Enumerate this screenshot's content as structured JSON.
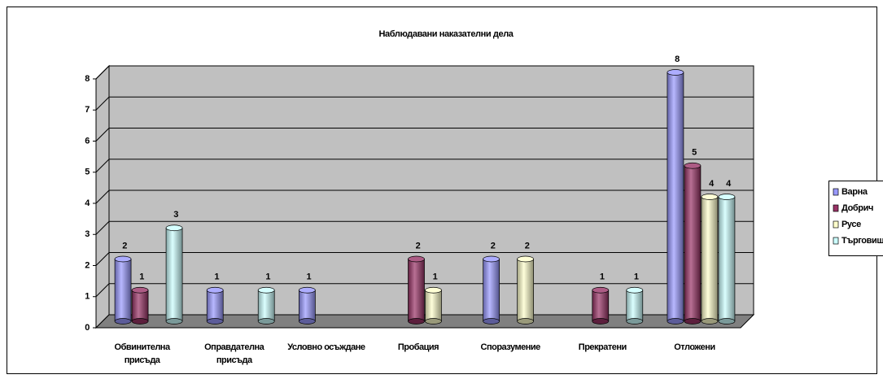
{
  "chart_data": {
    "type": "bar3d",
    "title": "Наблюдавани наказателни дела",
    "categories": [
      "Обвинителна присъда",
      "Оправдателна присъда",
      "Условно осъждане",
      "Пробация",
      "Споразумение",
      "Прекратени",
      "Отложени"
    ],
    "series": [
      {
        "name": "Варна",
        "color": "#9999ff",
        "values": [
          2,
          1,
          1,
          null,
          2,
          null,
          8
        ]
      },
      {
        "name": "Добрич",
        "color": "#993366",
        "values": [
          1,
          null,
          null,
          2,
          null,
          1,
          5
        ]
      },
      {
        "name": "Русе",
        "color": "#ffffcc",
        "values": [
          null,
          null,
          null,
          1,
          2,
          null,
          4
        ]
      },
      {
        "name": "Търговище",
        "color": "#ccffff",
        "values": [
          3,
          1,
          null,
          null,
          null,
          1,
          4
        ]
      }
    ],
    "ylim": [
      0,
      8
    ],
    "yticks": [
      0,
      1,
      2,
      3,
      4,
      5,
      6,
      7,
      8
    ],
    "grid": true,
    "legend": "right"
  }
}
